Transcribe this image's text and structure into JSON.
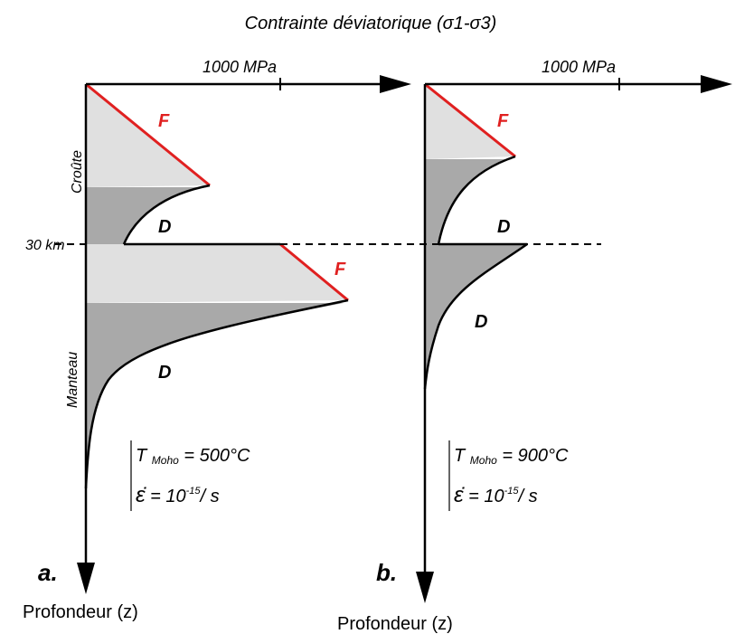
{
  "title": "Contrainte déviatorique (σ1-σ3)",
  "layers": [
    "Croûte",
    "Manteau"
  ],
  "moho_depth": "30 km",
  "panels": [
    {
      "label": "a.",
      "scale_label": "1000 MPa",
      "depth_label": "Profondeur (z)",
      "labels_F": [
        "F",
        "F"
      ],
      "labels_D": [
        "D",
        "D"
      ],
      "temperature": {
        "symbol": "T",
        "subscript": "Moho",
        "value": "= 500°C"
      },
      "strain_rate": {
        "symbol": "ε̇",
        "value": "= 10",
        "exponent": "-15",
        "unit": "/ s"
      }
    },
    {
      "label": "b.",
      "scale_label": "1000 MPa",
      "depth_label": "Profondeur (z)",
      "labels_F": [
        "F"
      ],
      "labels_D": [
        "D",
        "D"
      ],
      "temperature": {
        "symbol": "T",
        "subscript": "Moho",
        "value": "= 900°C"
      },
      "strain_rate": {
        "symbol": "ε̇",
        "value": "= 10",
        "exponent": "-15",
        "unit": "/ s"
      }
    }
  ]
}
